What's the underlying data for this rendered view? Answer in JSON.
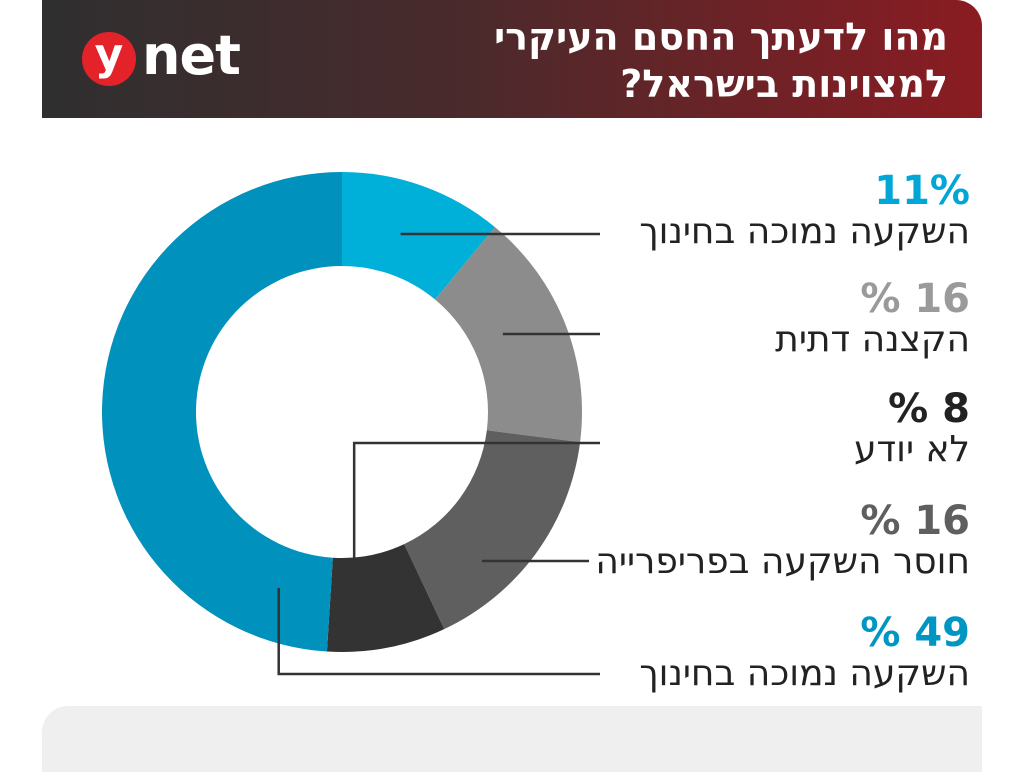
{
  "header": {
    "logo_y": "y",
    "logo_net": "net",
    "title_line1": "מהו לדעתך החסם העיקרי",
    "title_line2": "למצוינות בישראל?"
  },
  "colors": {
    "header_left": "#2f2f30",
    "header_right": "#8a1c22",
    "logo_red": "#e3222a"
  },
  "chart_data": {
    "type": "pie",
    "donut": true,
    "title": "מהו לדעתך החסם העיקרי למצוינות בישראל?",
    "slices": [
      {
        "label": "השקעה נמוכה בחינוך",
        "value": 11,
        "display": "11%",
        "color": "#00b0d8",
        "pct_color": "#00a7d6"
      },
      {
        "label": "הקצנה דתית",
        "value": 16,
        "display": "16 %",
        "color": "#8c8c8c",
        "pct_color": "#9a9a9a"
      },
      {
        "label": "חוסר השקעה בפריפרייה",
        "value": 16,
        "display": "16 %",
        "color": "#5f5f5f",
        "pct_color": "#5f5f5f"
      },
      {
        "label": "לא יודע",
        "value": 8,
        "display": "8 %",
        "color": "#333333",
        "pct_color": "#222222"
      },
      {
        "label": "השקעה נמוכה בחינוך",
        "value": 49,
        "display": "49  %",
        "color": "#0091bc",
        "pct_color": "#0096c4"
      }
    ],
    "legend_order": [
      0,
      1,
      3,
      2,
      4
    ]
  }
}
